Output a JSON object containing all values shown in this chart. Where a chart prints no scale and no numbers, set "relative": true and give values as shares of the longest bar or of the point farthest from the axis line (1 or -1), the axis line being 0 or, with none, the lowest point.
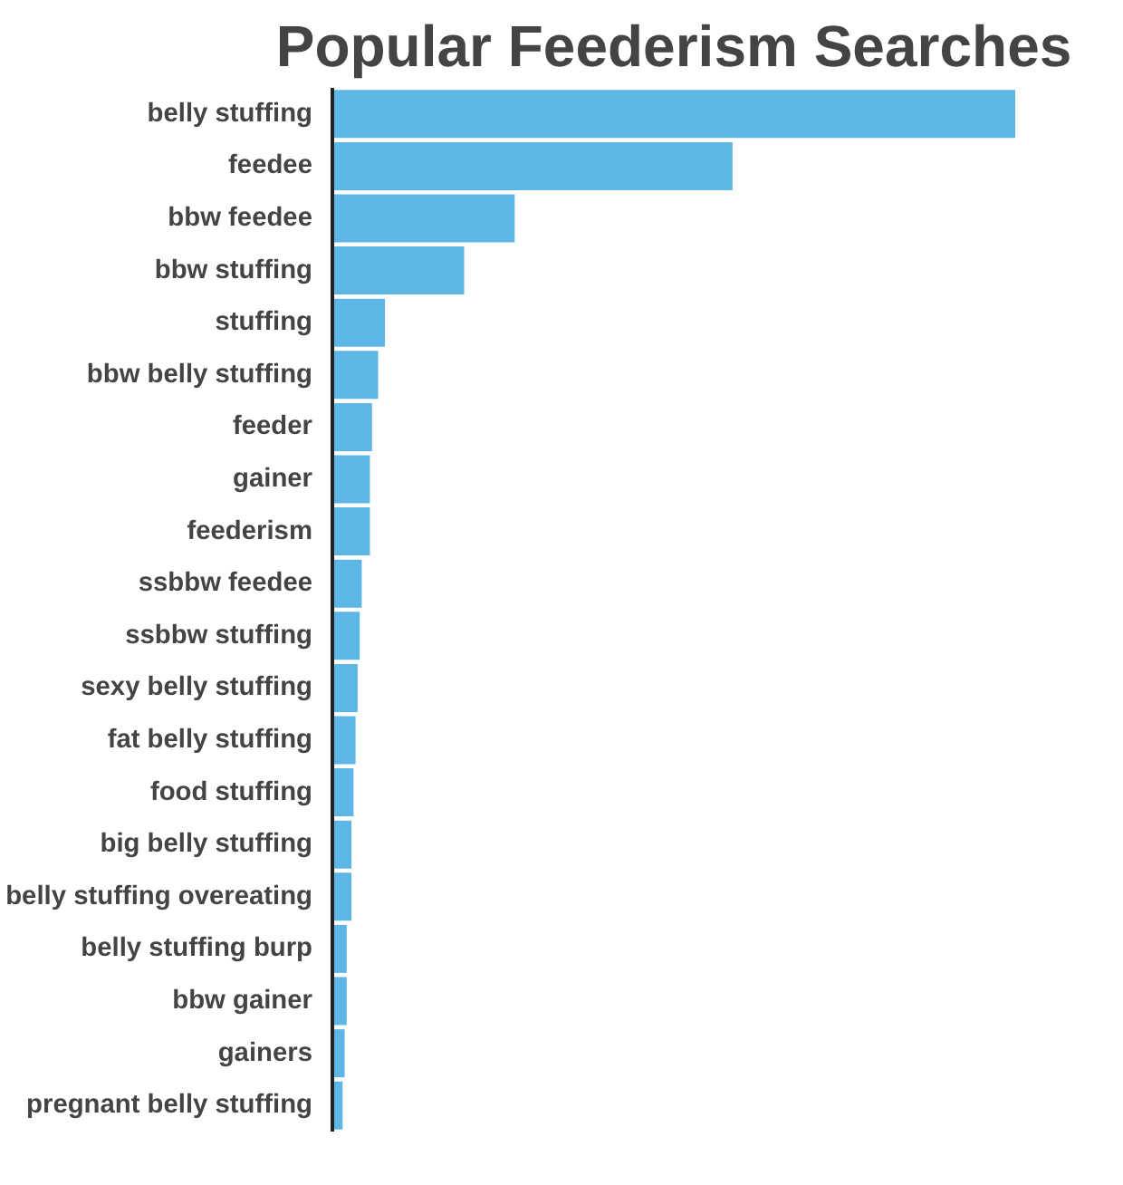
{
  "chart_data": {
    "type": "bar",
    "orientation": "horizontal",
    "relative": true,
    "title": "Popular Feederism Searches",
    "color": "#5eb6e6",
    "grid": false,
    "categories": [
      "belly stuffing",
      "feedee",
      "bbw feedee",
      "bbw stuffing",
      "stuffing",
      "bbw belly stuffing",
      "feeder",
      "gainer",
      "feederism",
      "ssbbw feedee",
      "ssbbw stuffing",
      "sexy belly stuffing",
      "fat belly stuffing",
      "food stuffing",
      "big belly stuffing",
      "belly stuffing overeating",
      "belly stuffing burp",
      "bbw gainer",
      "gainers",
      "pregnant belly stuffing"
    ],
    "values": [
      1,
      0.586,
      0.267,
      0.193,
      0.077,
      0.067,
      0.058,
      0.055,
      0.055,
      0.043,
      0.04,
      0.037,
      0.034,
      0.031,
      0.028,
      0.028,
      0.021,
      0.021,
      0.018,
      0.015
    ]
  }
}
